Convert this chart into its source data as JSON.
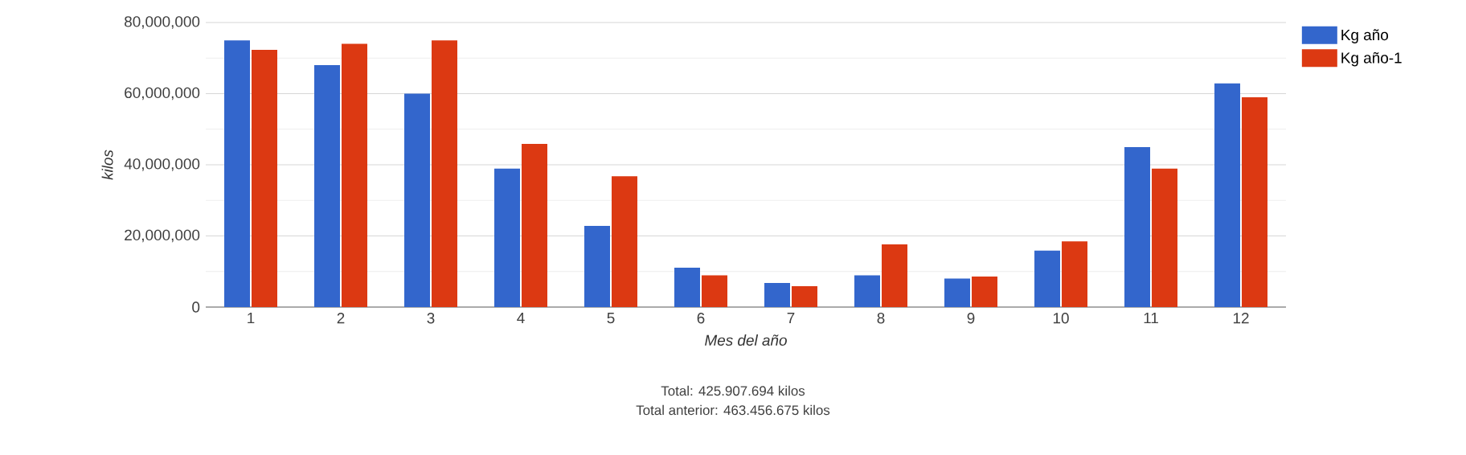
{
  "chart_data": {
    "type": "bar",
    "categories": [
      "1",
      "2",
      "3",
      "4",
      "5",
      "6",
      "7",
      "8",
      "9",
      "10",
      "11",
      "12"
    ],
    "series": [
      {
        "name": "Kg año",
        "color": "#3366cc",
        "values": [
          75000000,
          68000000,
          60000000,
          38900000,
          22800000,
          11100000,
          6800000,
          8900000,
          8000000,
          15900000,
          45000000,
          62900000
        ]
      },
      {
        "name": "Kg año-1",
        "color": "#dc3912",
        "values": [
          72300000,
          74000000,
          75000000,
          45900000,
          36800000,
          8900000,
          5900000,
          17600000,
          8600000,
          18500000,
          38900000,
          59000000
        ]
      }
    ],
    "xlabel": "Mes del año",
    "ylabel": "kilos",
    "ylim": [
      0,
      80000000
    ],
    "yticks": [
      {
        "value": 0,
        "label": "0"
      },
      {
        "value": 10000000,
        "label": null
      },
      {
        "value": 20000000,
        "label": "20,000,000"
      },
      {
        "value": 30000000,
        "label": null
      },
      {
        "value": 40000000,
        "label": "40,000,000"
      },
      {
        "value": 50000000,
        "label": null
      },
      {
        "value": 60000000,
        "label": "60,000,000"
      },
      {
        "value": 70000000,
        "label": null
      },
      {
        "value": 80000000,
        "label": "80,000,000"
      }
    ],
    "grid": "y",
    "legend": "top right",
    "annotations": [
      "Total: 425.907.694 kilos",
      "Total anterior: 463.456.675 kilos"
    ]
  }
}
